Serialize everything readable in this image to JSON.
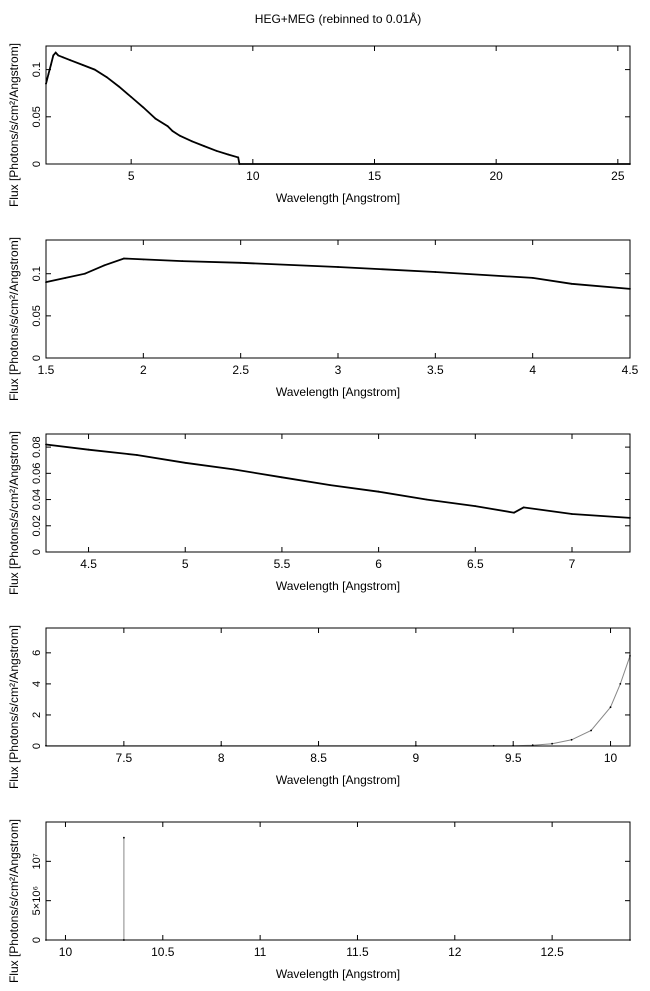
{
  "figure_title": "HEG+MEG (rebinned to 0.01Å)",
  "chart_data": [
    {
      "type": "line",
      "xlabel": "Wavelength [Angstrom]",
      "ylabel": "Flux [Photons/s/cm²/Angstrom]",
      "xlim": [
        1.5,
        25.5
      ],
      "ylim": [
        0,
        0.125
      ],
      "xticks": [
        5,
        10,
        15,
        20,
        25
      ],
      "xtick_labels": [
        "5",
        "10",
        "15",
        "20",
        "25"
      ],
      "yticks": [
        0,
        0.05,
        0.1
      ],
      "ytick_labels": [
        "0",
        "0.05",
        "0.1"
      ],
      "series": [
        {
          "x": [
            1.5,
            1.6,
            1.7,
            1.8,
            1.9,
            2.0,
            2.2,
            2.5,
            3.0,
            3.5,
            4.0,
            4.5,
            5.0,
            5.5,
            6.0,
            6.5,
            6.7,
            7.0,
            7.5,
            8.0,
            8.5,
            9.0,
            9.4,
            9.45,
            25.5
          ],
          "y": [
            0.085,
            0.095,
            0.105,
            0.115,
            0.118,
            0.115,
            0.113,
            0.11,
            0.105,
            0.1,
            0.092,
            0.082,
            0.071,
            0.06,
            0.048,
            0.04,
            0.035,
            0.03,
            0.024,
            0.019,
            0.014,
            0.01,
            0.007,
            0.0,
            0.0
          ]
        }
      ]
    },
    {
      "type": "line",
      "xlabel": "Wavelength [Angstrom]",
      "ylabel": "Flux [Photons/s/cm²/Angstrom]",
      "xlim": [
        1.5,
        4.5
      ],
      "ylim": [
        0,
        0.14
      ],
      "xticks": [
        1.5,
        2,
        2.5,
        3,
        3.5,
        4,
        4.5
      ],
      "xtick_labels": [
        "1.5",
        "2",
        "2.5",
        "3",
        "3.5",
        "4",
        "4.5"
      ],
      "yticks": [
        0,
        0.05,
        0.1
      ],
      "ytick_labels": [
        "0",
        "0.05",
        "0.1"
      ],
      "series": [
        {
          "x": [
            1.5,
            1.6,
            1.7,
            1.8,
            1.9,
            2.0,
            2.2,
            2.5,
            3.0,
            3.5,
            4.0,
            4.2,
            4.5
          ],
          "y": [
            0.09,
            0.095,
            0.1,
            0.11,
            0.118,
            0.117,
            0.115,
            0.113,
            0.108,
            0.102,
            0.095,
            0.088,
            0.082
          ]
        }
      ]
    },
    {
      "type": "line",
      "xlabel": "Wavelength [Angstrom]",
      "ylabel": "Flux [Photons/s/cm²/Angstrom]",
      "xlim": [
        4.28,
        7.3
      ],
      "ylim": [
        0,
        0.09
      ],
      "xticks": [
        4.5,
        5,
        5.5,
        6,
        6.5,
        7
      ],
      "xtick_labels": [
        "4.5",
        "5",
        "5.5",
        "6",
        "6.5",
        "7"
      ],
      "yticks": [
        0,
        0.02,
        0.04,
        0.06,
        0.08
      ],
      "ytick_labels": [
        "0",
        "0.02",
        "0.04",
        "0.06",
        "0.08"
      ],
      "series": [
        {
          "x": [
            4.28,
            4.5,
            4.75,
            5.0,
            5.25,
            5.5,
            5.75,
            6.0,
            6.25,
            6.5,
            6.7,
            6.75,
            7.0,
            7.3
          ],
          "y": [
            0.082,
            0.078,
            0.074,
            0.068,
            0.063,
            0.057,
            0.051,
            0.046,
            0.04,
            0.035,
            0.03,
            0.034,
            0.029,
            0.026
          ]
        }
      ]
    },
    {
      "type": "line",
      "xlabel": "Wavelength [Angstrom]",
      "ylabel": "Flux [Photons/s/cm²/Angstrom]",
      "xlim": [
        7.1,
        10.1
      ],
      "ylim": [
        0,
        7.6
      ],
      "xticks": [
        7.5,
        8,
        8.5,
        9,
        9.5,
        10
      ],
      "xtick_labels": [
        "7.5",
        "8",
        "8.5",
        "9",
        "9.5",
        "10"
      ],
      "yticks": [
        0,
        2,
        4,
        6
      ],
      "ytick_labels": [
        "0",
        "2",
        "4",
        "6"
      ],
      "series": [
        {
          "x": [
            7.1,
            8.0,
            9.0,
            9.4,
            9.5,
            9.6,
            9.7,
            9.8,
            9.9,
            10.0,
            10.05,
            10.1
          ],
          "y": [
            0.02,
            0.02,
            0.01,
            0.01,
            0.02,
            0.05,
            0.15,
            0.4,
            1.0,
            2.5,
            4.0,
            5.8
          ]
        }
      ]
    },
    {
      "type": "line",
      "xlabel": "Wavelength [Angstrom]",
      "ylabel": "Flux [Photons/s/cm²/Angstrom]",
      "xlim": [
        9.9,
        12.9
      ],
      "ylim": [
        0,
        15000000
      ],
      "xticks": [
        10,
        10.5,
        11,
        11.5,
        12,
        12.5
      ],
      "xtick_labels": [
        "10",
        "10.5",
        "11",
        "11.5",
        "12",
        "12.5"
      ],
      "yticks": [
        0,
        5000000,
        10000000
      ],
      "ytick_labels": [
        "0",
        "5×10⁶",
        "10⁷"
      ],
      "series": [
        {
          "x": [
            9.9,
            10.3,
            10.3,
            10.3,
            12.9
          ],
          "y": [
            0,
            0,
            13000000,
            0,
            0
          ]
        }
      ]
    }
  ]
}
